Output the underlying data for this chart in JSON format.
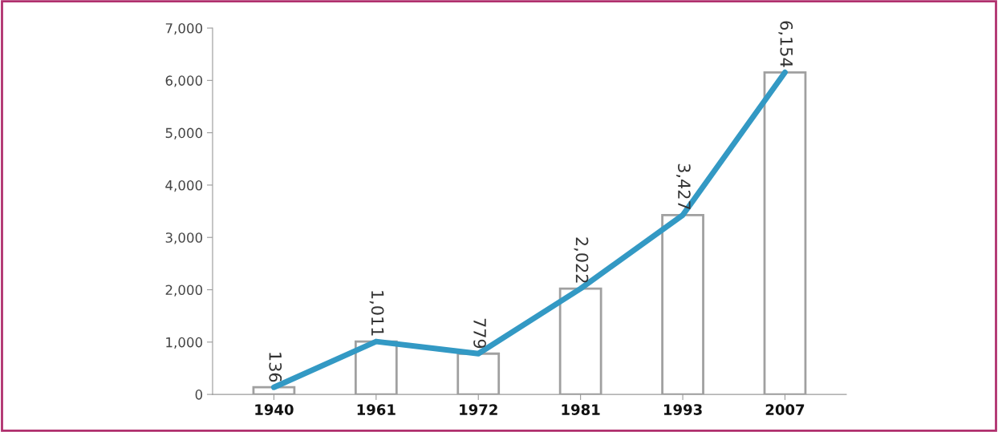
{
  "chart_data": {
    "type": "bar",
    "categories": [
      "1940",
      "1961",
      "1972",
      "1981",
      "1993",
      "2007"
    ],
    "series": [
      {
        "color": "#ffffff",
        "values": [
          136,
          1011,
          779,
          2022,
          3427,
          6154
        ],
        "value_labels": [
          "136",
          "1,011",
          "779",
          "2,022",
          "3,427",
          "6,154"
        ]
      },
      {
        "type": "line",
        "color": "#3399c4",
        "values": [
          136,
          1011,
          779,
          2022,
          3427,
          6154
        ]
      }
    ],
    "ylim": [
      0,
      7000
    ],
    "yticks": [
      0,
      {
        "value": 1000,
        "label": "1,000"
      },
      {
        "value": 2000,
        "label": "2,000"
      },
      {
        "value": 3000,
        "label": "3,000"
      },
      {
        "value": 4000,
        "label": "4,000"
      },
      {
        "value": 5000,
        "label": "5,000"
      },
      {
        "value": 6000,
        "label": "6,000"
      },
      {
        "value": 7000,
        "label": "7,000"
      }
    ],
    "grid": false,
    "marker": "none",
    "line_style": "solid"
  }
}
